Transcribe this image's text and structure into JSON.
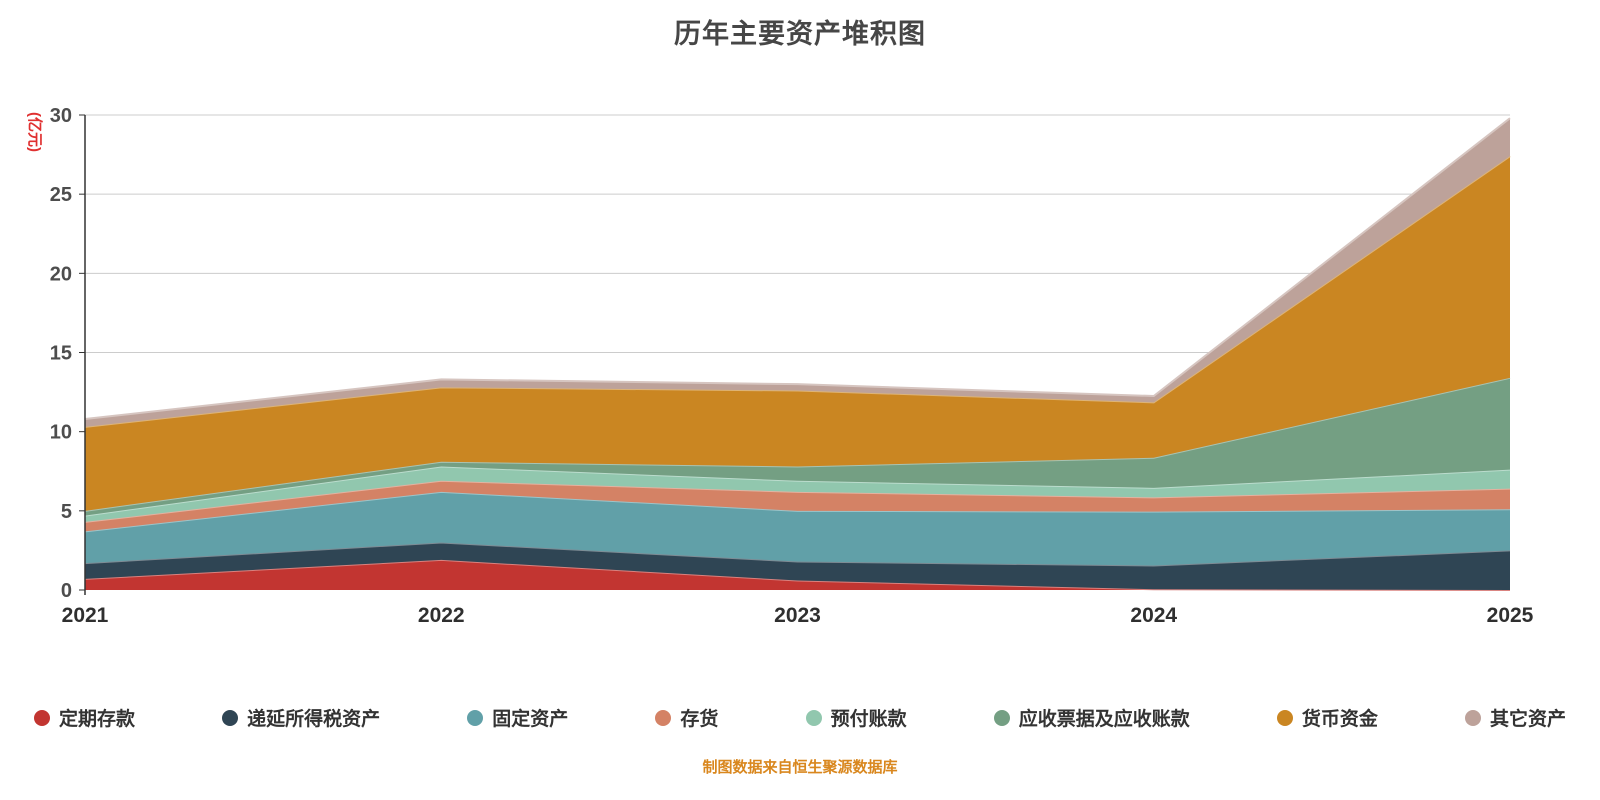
{
  "page": {
    "footer_note": "制图数据来自恒生聚源数据库"
  },
  "chart_data": {
    "type": "area",
    "stacked": true,
    "title": "历年主要资产堆积图",
    "ylabel": "(亿元)",
    "ylabel_color": "#e03131",
    "xlabel": "",
    "categories": [
      "2021",
      "2022",
      "2023",
      "2024",
      "2025"
    ],
    "y_ticks": [
      0,
      5,
      10,
      15,
      20,
      25,
      30
    ],
    "ylim": [
      0,
      30
    ],
    "grid": true,
    "legend_position": "bottom",
    "series": [
      {
        "name": "定期存款",
        "color": "#c23531",
        "values": [
          0.7,
          1.9,
          0.6,
          0.05,
          0.0
        ]
      },
      {
        "name": "递延所得税资产",
        "color": "#2f4554",
        "values": [
          1.0,
          1.1,
          1.2,
          1.5,
          2.5
        ]
      },
      {
        "name": "固定资产",
        "color": "#61a0a8",
        "values": [
          2.0,
          3.2,
          3.2,
          3.4,
          2.6
        ]
      },
      {
        "name": "存货",
        "color": "#d48265",
        "values": [
          0.6,
          0.7,
          1.2,
          0.9,
          1.3
        ]
      },
      {
        "name": "预付账款",
        "color": "#91c7ae",
        "values": [
          0.4,
          0.9,
          0.7,
          0.6,
          1.2
        ]
      },
      {
        "name": "应收票据及应收账款",
        "color": "#749f83",
        "values": [
          0.3,
          0.3,
          0.9,
          1.9,
          5.8
        ]
      },
      {
        "name": "货币资金",
        "color": "#ca8622",
        "values": [
          5.3,
          4.7,
          4.8,
          3.5,
          14.0
        ]
      },
      {
        "name": "其它资产",
        "color": "#bda29a",
        "values": [
          0.5,
          0.5,
          0.4,
          0.4,
          2.4
        ]
      }
    ]
  }
}
